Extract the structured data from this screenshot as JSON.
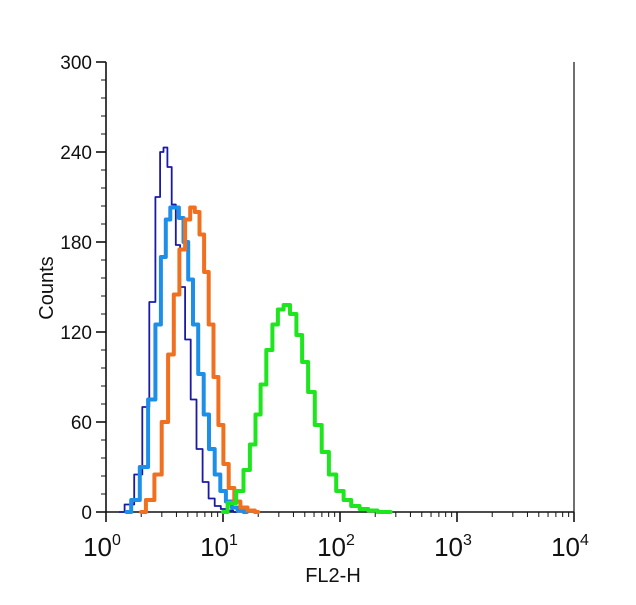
{
  "chart_data": {
    "type": "histogram",
    "xlabel": "FL2-H",
    "ylabel": "Counts",
    "x_scale": "log",
    "xlim": [
      1,
      10000
    ],
    "ylim": [
      0,
      300
    ],
    "y_ticks": [
      0,
      60,
      120,
      180,
      240,
      300
    ],
    "x_ticks": [
      {
        "base": "10",
        "exp": "0",
        "value": 1
      },
      {
        "base": "10",
        "exp": "1",
        "value": 10
      },
      {
        "base": "10",
        "exp": "2",
        "value": 100
      },
      {
        "base": "10",
        "exp": "3",
        "value": 1000
      },
      {
        "base": "10",
        "exp": "4",
        "value": 10000
      }
    ],
    "grid": false,
    "legend": "none",
    "series": [
      {
        "color": "#1a1aa8",
        "style": "thin",
        "x": [
          1.3,
          1.6,
          1.9,
          2.2,
          2.5,
          2.8,
          3.0,
          3.2,
          3.5,
          3.8,
          4.1,
          4.5,
          5.0,
          5.6,
          6.3,
          7.1,
          8.0,
          9.0,
          10.2,
          11.5,
          13
        ],
        "y": [
          0,
          5,
          25,
          70,
          140,
          210,
          240,
          243,
          230,
          205,
          178,
          150,
          115,
          75,
          42,
          20,
          9,
          4,
          2,
          1,
          0
        ]
      },
      {
        "color": "#1e8fe8",
        "style": "thick",
        "x": [
          1.5,
          1.8,
          2.1,
          2.5,
          2.8,
          3.1,
          3.4,
          3.7,
          4.0,
          4.4,
          4.8,
          5.3,
          5.8,
          6.5,
          7.2,
          8.0,
          9.0,
          10.0,
          11.2,
          12.6,
          14.1,
          16
        ],
        "y": [
          0,
          8,
          30,
          75,
          125,
          170,
          195,
          203,
          203,
          196,
          180,
          155,
          125,
          92,
          65,
          42,
          25,
          14,
          7,
          3,
          1,
          0
        ]
      },
      {
        "color": "#f07020",
        "style": "thick",
        "x": [
          2.0,
          2.4,
          2.8,
          3.2,
          3.6,
          4.0,
          4.5,
          5.0,
          5.5,
          6.0,
          6.6,
          7.2,
          7.9,
          8.7,
          9.6,
          10.6,
          11.8,
          13.2,
          15,
          17.5,
          20
        ],
        "y": [
          0,
          8,
          25,
          60,
          105,
          145,
          175,
          195,
          203,
          200,
          185,
          160,
          125,
          90,
          58,
          32,
          16,
          7,
          3,
          1,
          0
        ]
      },
      {
        "color": "#1ee61e",
        "style": "thick",
        "x": [
          10,
          12,
          14,
          16,
          18,
          20,
          22,
          25,
          28,
          31,
          35,
          40,
          45,
          50,
          57,
          65,
          75,
          86,
          100,
          115,
          135,
          160,
          190,
          230,
          270
        ],
        "y": [
          0,
          6,
          14,
          28,
          45,
          65,
          85,
          108,
          125,
          135,
          138,
          132,
          118,
          100,
          80,
          58,
          40,
          25,
          14,
          8,
          4,
          2,
          1,
          0,
          0
        ]
      }
    ]
  }
}
